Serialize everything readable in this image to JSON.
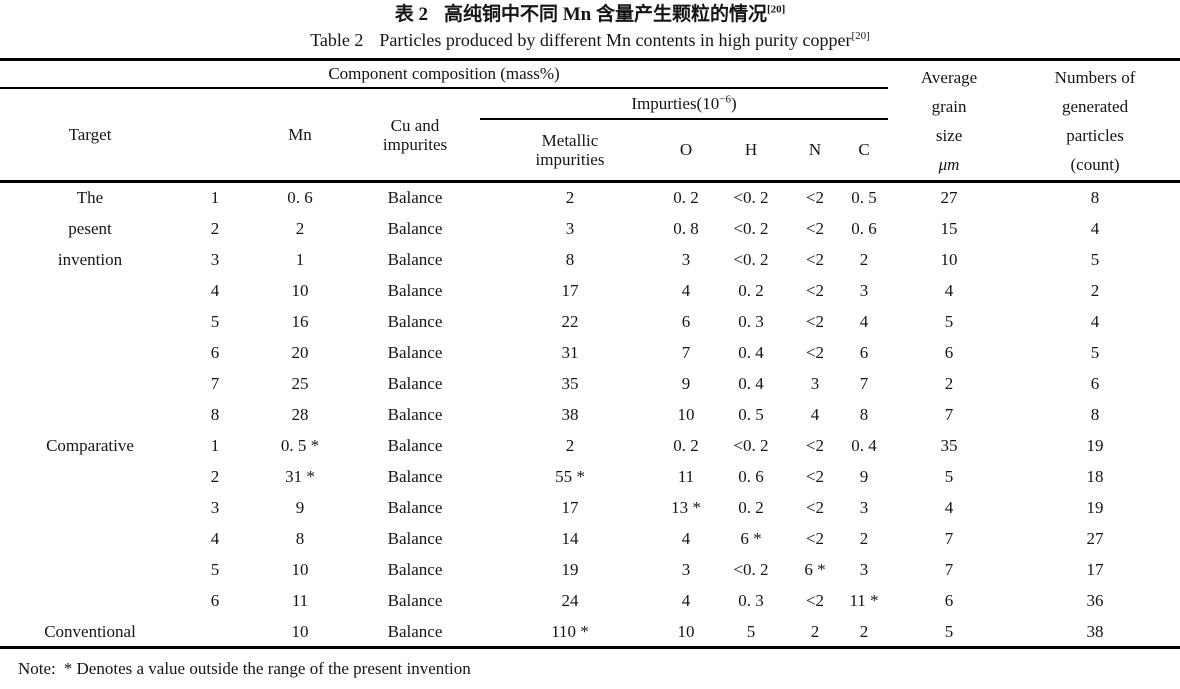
{
  "title": {
    "zh_label": "表 2",
    "zh_text": "高纯铜中不同 Mn 含量产生颗粒的情况",
    "zh_sup": "[20]",
    "en_label": "Table 2",
    "en_text": "Particles produced by different Mn contents in high purity copper",
    "en_sup": "[20]"
  },
  "header": {
    "component_composition": "Component composition (mass%)",
    "target": "Target",
    "mn": "Mn",
    "cu_line1": "Cu and",
    "cu_line2": "impurites",
    "impurities_prefix": "Impurties(10",
    "impurities_sup": "−6",
    "impurities_suffix": ")",
    "metallic_line1": "Metallic",
    "metallic_line2": "impurities",
    "o": "O",
    "h": "H",
    "n": "N",
    "c": "C",
    "grain_lines": [
      "Average",
      "grain",
      "size",
      "μm"
    ],
    "particles_lines": [
      "Numbers of",
      "generated",
      "particles",
      "(count)"
    ]
  },
  "table": {
    "rows": [
      [
        "The",
        "1",
        "0. 6",
        "Balance",
        "2",
        "0. 2",
        "<0. 2",
        "<2",
        "0. 5",
        "27",
        "8"
      ],
      [
        "pesent",
        "2",
        "2",
        "Balance",
        "3",
        "0. 8",
        "<0. 2",
        "<2",
        "0. 6",
        "15",
        "4"
      ],
      [
        "invention",
        "3",
        "1",
        "Balance",
        "8",
        "3",
        "<0. 2",
        "<2",
        "2",
        "10",
        "5"
      ],
      [
        "",
        "4",
        "10",
        "Balance",
        "17",
        "4",
        "0. 2",
        "<2",
        "3",
        "4",
        "2"
      ],
      [
        "",
        "5",
        "16",
        "Balance",
        "22",
        "6",
        "0. 3",
        "<2",
        "4",
        "5",
        "4"
      ],
      [
        "",
        "6",
        "20",
        "Balance",
        "31",
        "7",
        "0. 4",
        "<2",
        "6",
        "6",
        "5"
      ],
      [
        "",
        "7",
        "25",
        "Balance",
        "35",
        "9",
        "0. 4",
        "3",
        "7",
        "2",
        "6"
      ],
      [
        "",
        "8",
        "28",
        "Balance",
        "38",
        "10",
        "0. 5",
        "4",
        "8",
        "7",
        "8"
      ],
      [
        "Comparative",
        "1",
        "0. 5 *",
        "Balance",
        "2",
        "0. 2",
        "<0. 2",
        "<2",
        "0. 4",
        "35",
        "19"
      ],
      [
        "",
        "2",
        "31 *",
        "Balance",
        "55 *",
        "11",
        "0. 6",
        "<2",
        "9",
        "5",
        "18"
      ],
      [
        "",
        "3",
        "9",
        "Balance",
        "17",
        "13 *",
        "0. 2",
        "<2",
        "3",
        "4",
        "19"
      ],
      [
        "",
        "4",
        "8",
        "Balance",
        "14",
        "4",
        "6 *",
        "<2",
        "2",
        "7",
        "27"
      ],
      [
        "",
        "5",
        "10",
        "Balance",
        "19",
        "3",
        "<0. 2",
        "6 *",
        "3",
        "7",
        "17"
      ],
      [
        "",
        "6",
        "11",
        "Balance",
        "24",
        "4",
        "0. 3",
        "<2",
        "11 *",
        "6",
        "36"
      ],
      [
        "Conventional",
        "",
        "10",
        "Balance",
        "110 *",
        "10",
        "5",
        "2",
        "2",
        "5",
        "38"
      ]
    ]
  },
  "note": {
    "label": "Note:",
    "text": "* Denotes a value outside the range of the present invention"
  }
}
